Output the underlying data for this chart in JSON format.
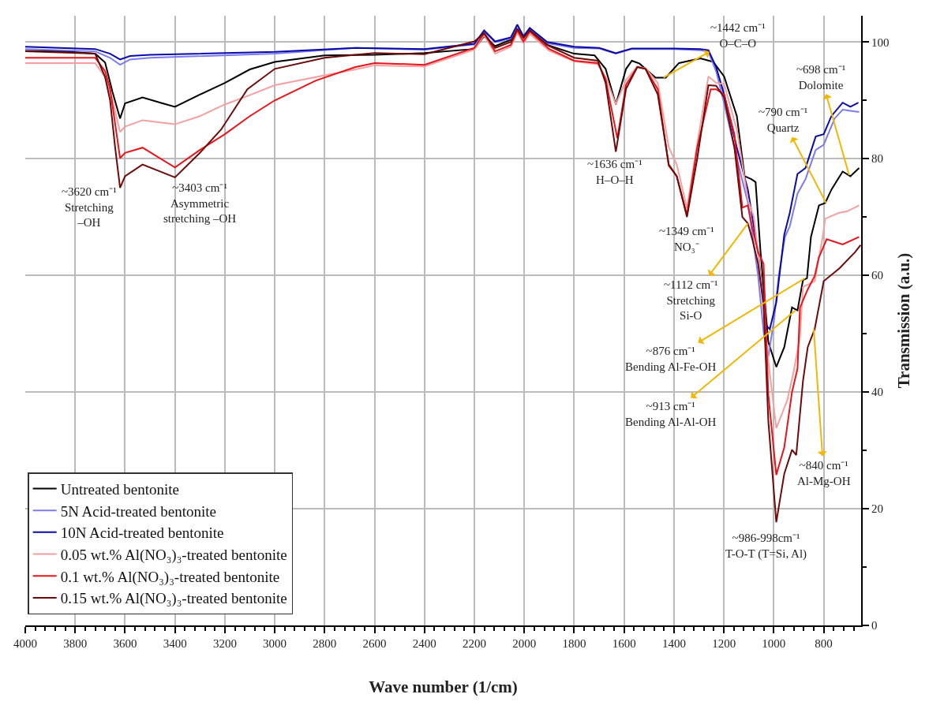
{
  "chart_data": {
    "type": "line",
    "xlabel": "Wave number (1/cm)",
    "ylabel": "Transmission (a.u.)",
    "xlim": [
      4000,
      650
    ],
    "xticks": [
      4000,
      3800,
      3600,
      3400,
      3200,
      3000,
      2800,
      2600,
      2400,
      2200,
      2000,
      1800,
      1600,
      1400,
      1200,
      1000,
      800
    ],
    "ylim": [
      0,
      104.5
    ],
    "yticks": [
      0,
      20,
      40,
      60,
      80,
      100
    ],
    "grid": true,
    "legend": "bottom left",
    "series": [
      {
        "name": "Untreated bentonite",
        "color": "#000000",
        "x": [
          4000,
          3850,
          3720,
          3680,
          3650,
          3620,
          3600,
          3530,
          3450,
          3400,
          3300,
          3200,
          3100,
          3000,
          2800,
          2600,
          2400,
          2200,
          2161,
          2117,
          2054,
          2028,
          2003,
          1978,
          1908,
          1800,
          1718,
          1674,
          1633,
          1592,
          1569,
          1538,
          1474,
          1433,
          1380,
          1294,
          1243,
          1199,
          1148,
          1117,
          1090,
          1073,
          1053,
          1022,
          990,
          958,
          927,
          905,
          883,
          867,
          851,
          819,
          794,
          769,
          724,
          693,
          658
        ],
        "values": [
          98.5,
          98.4,
          98,
          96.5,
          91.4,
          86.9,
          89.5,
          90.5,
          89.5,
          88.9,
          91,
          93,
          95.3,
          96.6,
          97.7,
          97.8,
          98.1,
          98.8,
          101,
          99.3,
          100.4,
          102,
          101,
          102,
          99.5,
          98,
          97.7,
          95.4,
          89.3,
          95.4,
          96.8,
          96.3,
          93.9,
          93.9,
          96.4,
          97.2,
          96.6,
          94.1,
          87.3,
          77,
          76.5,
          76,
          64,
          48.6,
          44.3,
          47.7,
          54.5,
          54,
          59.2,
          59.5,
          66.6,
          72,
          72.4,
          74.7,
          77.8,
          77,
          78.4
        ]
      },
      {
        "name": "5N Acid-treated bentonite",
        "color": "#7b7bef",
        "x": [
          4000,
          3720,
          3660,
          3620,
          3580,
          3500,
          3000,
          2677,
          2400,
          2200,
          2161,
          2117,
          2054,
          2028,
          2003,
          1978,
          1908,
          1800,
          1700,
          1633,
          1569,
          1400,
          1294,
          1262,
          1231,
          1199,
          1148,
          1104,
          1063,
          1040,
          1022,
          1000,
          980,
          955,
          936,
          905,
          873,
          832,
          800,
          756,
          724,
          693,
          658
        ],
        "values": [
          98.8,
          98.4,
          97.3,
          96.1,
          97,
          97.3,
          98,
          99,
          98.7,
          99.6,
          101.8,
          100,
          100.6,
          102.8,
          100.9,
          102.2,
          99.8,
          99,
          98.9,
          98,
          98.8,
          98.8,
          98.6,
          98.3,
          95,
          89.5,
          80,
          72.5,
          60,
          50,
          46.1,
          52,
          60,
          66.6,
          68.4,
          74,
          76.5,
          81.5,
          82.4,
          86.9,
          88.4,
          88.2,
          88
        ]
      },
      {
        "name": "10N Acid-treated bentonite",
        "color": "#0a0aa8",
        "x": [
          4000,
          3720,
          3660,
          3620,
          3580,
          3500,
          3000,
          2677,
          2400,
          2200,
          2161,
          2117,
          2054,
          2028,
          2003,
          1978,
          1908,
          1800,
          1700,
          1633,
          1569,
          1400,
          1294,
          1262,
          1231,
          1199,
          1148,
          1104,
          1063,
          1031,
          1016,
          990,
          958,
          936,
          905,
          873,
          832,
          800,
          769,
          724,
          693,
          661
        ],
        "values": [
          99.2,
          98.8,
          98,
          97,
          97.6,
          97.8,
          98.3,
          99,
          98.8,
          99.7,
          102,
          100.1,
          100.8,
          103,
          101,
          102.4,
          100,
          99.2,
          99,
          98.1,
          98.9,
          98.9,
          98.8,
          98.6,
          95.7,
          91,
          81.9,
          74.7,
          64,
          51.4,
          50.8,
          55.4,
          67,
          70.7,
          77.4,
          78.4,
          83.8,
          84.2,
          87.3,
          89.6,
          88.9,
          89.6
        ]
      },
      {
        "name": "0.05 wt.% Al(NO₃)₃-treated bentonite",
        "color": "#f4a0a0",
        "x": [
          4000,
          3720,
          3680,
          3650,
          3620,
          3600,
          3530,
          3400,
          3300,
          3200,
          3100,
          3000,
          2800,
          2677,
          2600,
          2400,
          2200,
          2161,
          2117,
          2054,
          2028,
          2003,
          1978,
          1900,
          1800,
          1705,
          1674,
          1633,
          1592,
          1547,
          1514,
          1465,
          1421,
          1389,
          1348,
          1307,
          1262,
          1231,
          1199,
          1148,
          1104,
          1080,
          1063,
          1040,
          1022,
          990,
          946,
          920,
          895,
          883,
          836,
          804,
          794,
          740,
          705,
          658
        ],
        "values": [
          96.4,
          96.4,
          94,
          90,
          84.6,
          85.5,
          86.6,
          85.9,
          87.3,
          89.3,
          90.9,
          92.6,
          94.3,
          95.3,
          96,
          95.8,
          98.7,
          101.2,
          98,
          99.2,
          101.6,
          99.8,
          101.4,
          98.5,
          96.7,
          96.2,
          94,
          89.3,
          93.5,
          95.8,
          95.5,
          93,
          82,
          79,
          71.5,
          82.5,
          94.1,
          93,
          92.8,
          85,
          73,
          70,
          64,
          54,
          45.4,
          33.8,
          38.6,
          43.6,
          49.5,
          58,
          59,
          66.6,
          69.7,
          70.7,
          71,
          72
        ]
      },
      {
        "name": "0.1 wt.% Al(NO₃)₃-treated bentonite",
        "color": "#e8141a",
        "x": [
          4000,
          3720,
          3680,
          3660,
          3620,
          3600,
          3530,
          3400,
          3300,
          3200,
          3100,
          3000,
          2835,
          2677,
          2600,
          2400,
          2200,
          2161,
          2117,
          2054,
          2028,
          2003,
          1978,
          1900,
          1800,
          1705,
          1674,
          1627,
          1592,
          1547,
          1514,
          1465,
          1421,
          1389,
          1348,
          1307,
          1253,
          1231,
          1199,
          1158,
          1126,
          1104,
          1085,
          1063,
          1041,
          1022,
          990,
          958,
          927,
          905,
          895,
          864,
          836,
          820,
          788,
          724,
          658
        ],
        "values": [
          97.3,
          97.3,
          95,
          92,
          80.1,
          81,
          81.9,
          78.5,
          81.5,
          84.2,
          87.3,
          90,
          93.4,
          95.7,
          96.4,
          96.1,
          99,
          101.5,
          98.4,
          99.5,
          102,
          100.1,
          101.8,
          98.8,
          96.8,
          96.4,
          93.6,
          83.5,
          92.7,
          95.7,
          95.4,
          91.9,
          78.8,
          77,
          70.4,
          81.9,
          91.9,
          91.9,
          91,
          84.2,
          71.6,
          72,
          68,
          64,
          62,
          39.6,
          25.8,
          30.5,
          40,
          44,
          54.5,
          57.6,
          59.9,
          63,
          66.2,
          65.3,
          66.6
        ]
      },
      {
        "name": "0.15 wt.% Al(NO₃)₃-treated bentonite",
        "color": "#6e0a0a",
        "x": [
          4000,
          3720,
          3680,
          3660,
          3640,
          3620,
          3600,
          3530,
          3400,
          3300,
          3215,
          3110,
          3000,
          2800,
          2677,
          2600,
          2400,
          2200,
          2161,
          2117,
          2054,
          2028,
          2003,
          1978,
          1900,
          1800,
          1705,
          1674,
          1633,
          1592,
          1547,
          1514,
          1465,
          1421,
          1389,
          1348,
          1307,
          1262,
          1231,
          1199,
          1158,
          1126,
          1104,
          1085,
          1063,
          1041,
          1022,
          990,
          958,
          927,
          910,
          883,
          864,
          836,
          800,
          737,
          674,
          652
        ],
        "values": [
          98.4,
          98,
          94,
          90,
          82,
          75,
          77,
          79,
          76.8,
          81,
          85,
          91.9,
          95.4,
          97.3,
          97.8,
          98.1,
          97.9,
          100.1,
          101.5,
          99,
          100,
          102.3,
          100.7,
          102,
          99.3,
          97.3,
          96.8,
          93,
          81.2,
          92,
          95.7,
          95.4,
          91,
          79,
          77,
          70,
          80,
          92.6,
          92.5,
          90.5,
          82,
          70,
          68.9,
          66,
          62,
          55,
          35.1,
          17.7,
          26,
          30.1,
          29.2,
          41.9,
          47.7,
          50.8,
          59,
          61.2,
          64,
          65.2
        ]
      }
    ],
    "annotations": [
      {
        "text": "~3620 cm⁻¹\nStretching\n–OH",
        "x": 3620,
        "y": 75
      },
      {
        "text": "~3403 cm⁻¹\nAsymmetric\nstretching –OH",
        "x": 3403,
        "y": 76.8
      },
      {
        "text": "~1442 cm⁻¹\nO–C–O",
        "x": 1442,
        "y": 93.9
      },
      {
        "text": "~1636 cm⁻¹\nH–O–H",
        "x": 1636,
        "y": 81.2
      },
      {
        "text": "~1349 cm⁻¹\nNO₃⁻",
        "x": 1349,
        "y": 70
      },
      {
        "text": "~1112 cm⁻¹\nStretching\nSi-O",
        "x": 1104,
        "y": 68.9
      },
      {
        "text": "~876 cm⁻¹\nBending Al-Fe-OH",
        "x": 876,
        "y": 59.5
      },
      {
        "text": "~913 cm⁻¹\nBending Al-Al-OH",
        "x": 913,
        "y": 54
      },
      {
        "text": "~840 cm⁻¹\nAl-Mg-OH",
        "x": 840,
        "y": 50.8
      },
      {
        "text": "~986-998cm⁻¹\nT-O-T (T=Si, Al)",
        "x": 990,
        "y": 17.7
      },
      {
        "text": "~790 cm⁻¹\nQuartz",
        "x": 790,
        "y": 72.4
      },
      {
        "text": "~698 cm⁻¹\nDolomite",
        "x": 698,
        "y": 77.2
      }
    ]
  }
}
